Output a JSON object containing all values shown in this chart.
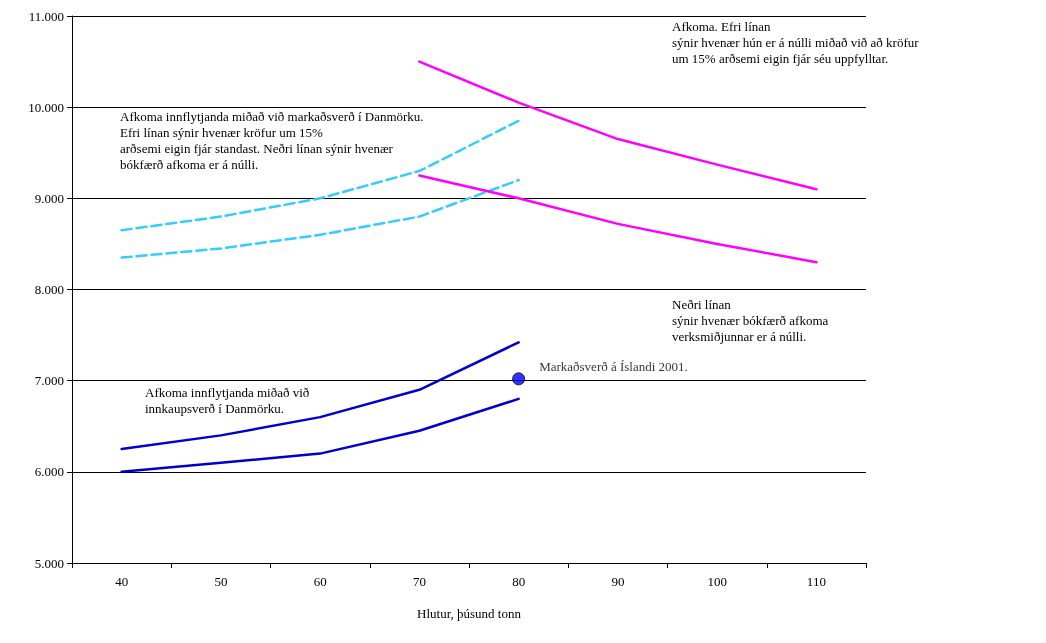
{
  "chart_data": {
    "type": "line",
    "xlabel": "Hlutur, þúsund tonn",
    "categories": [
      "40",
      "50",
      "60",
      "70",
      "80",
      "90",
      "100",
      "110"
    ],
    "ylim": [
      5000,
      11000
    ],
    "yticks": [
      {
        "value": 5000,
        "label": "5.000"
      },
      {
        "value": 6000,
        "label": "6.000"
      },
      {
        "value": 7000,
        "label": "7.000"
      },
      {
        "value": 8000,
        "label": "8.000"
      },
      {
        "value": 9000,
        "label": "9.000"
      },
      {
        "value": 10000,
        "label": "10.000"
      },
      {
        "value": 11000,
        "label": "11.000"
      }
    ],
    "grid": "y",
    "legend": false,
    "marker": "none",
    "series": [
      {
        "color": "#0000cc",
        "line_style": "solid",
        "values": [
          6250,
          6400,
          6600,
          6900,
          7420,
          null,
          null,
          null
        ]
      },
      {
        "color": "#0000cc",
        "line_style": "solid",
        "values": [
          6000,
          6100,
          6200,
          6450,
          6800,
          null,
          null,
          null
        ]
      },
      {
        "color": "#33ccff",
        "line_style": "dashed",
        "values": [
          8650,
          8800,
          9000,
          9300,
          9850,
          null,
          null,
          null
        ]
      },
      {
        "color": "#33ccff",
        "line_style": "dashed",
        "values": [
          8350,
          8450,
          8600,
          8800,
          9200,
          null,
          null,
          null
        ]
      },
      {
        "color": "#ff00ff",
        "line_style": "solid",
        "values": [
          null,
          null,
          null,
          10500,
          10050,
          9650,
          9370,
          9100
        ]
      },
      {
        "color": "#ff00ff",
        "line_style": "solid",
        "values": [
          null,
          null,
          null,
          9250,
          9000,
          8720,
          8500,
          8300
        ]
      },
      {
        "type": "scatter",
        "name": "Markaðsverð á Íslandi 2001.",
        "color": "#0000ff",
        "marker": "circle",
        "x": [
          "80"
        ],
        "values": [
          7020
        ]
      }
    ],
    "annotations": [
      "Afkoma innflytjanda miðað við markaðsverð í Danmörku.\nEfri línan sýnir hvenær kröfur um 15%\narðsemi eigin fjár standast. Neðri línan sýnir hvenær\nbókfærð afkoma er á núlli.",
      "Afkoma. Efri línan\nsýnir hvenær hún er á núlli miðað við að kröfur\num 15% arðsemi eigin fjár séu uppfylltar.",
      "Neðri línan\nsýnir hvenær bókfærð afkoma\nverksmiðjunnar er á núlli.",
      "Afkoma innflytjanda miðað við\ninnkaupsverð í Danmörku."
    ]
  }
}
